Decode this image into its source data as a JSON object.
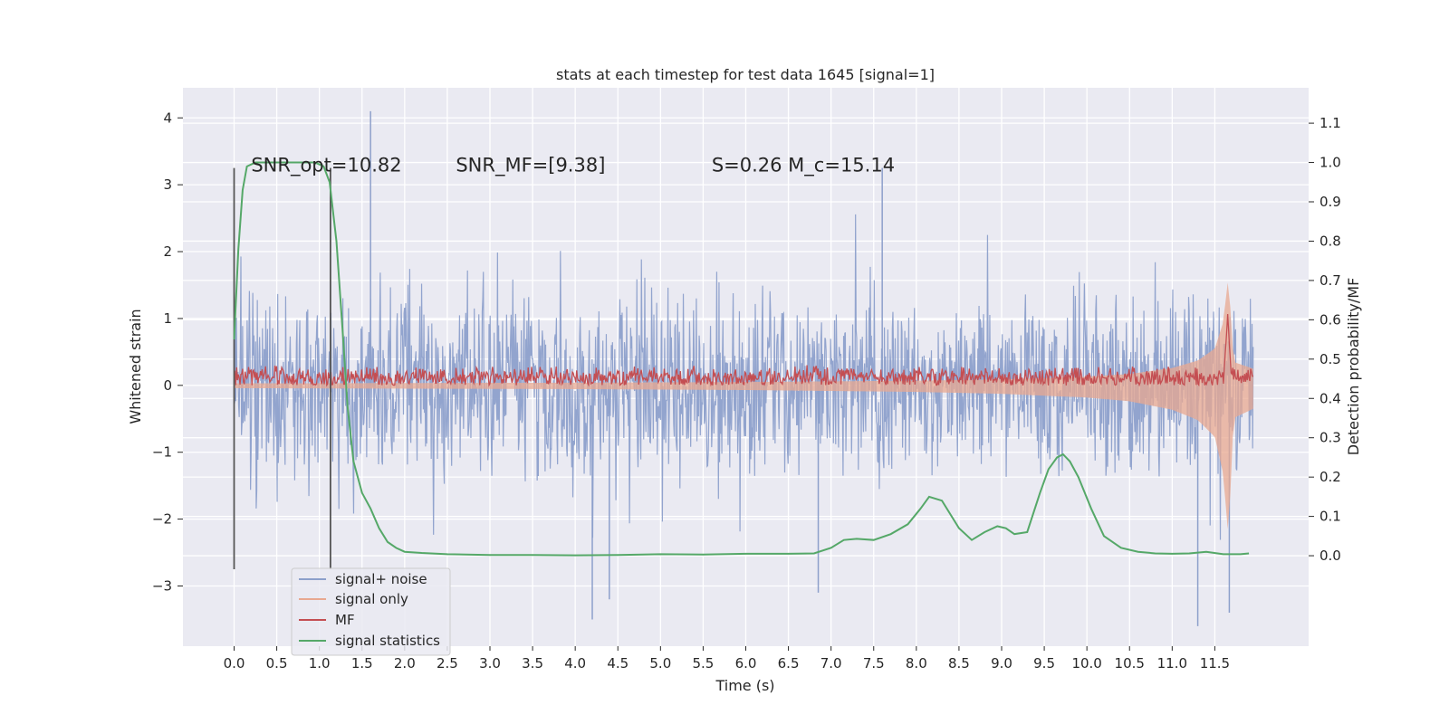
{
  "chart_data": {
    "type": "line",
    "title": "stats at each timestep for test data 1645 [signal=1]",
    "xlabel": "Time (s)",
    "ylabel": "Whitened strain",
    "y2label": "Detection probability/MF",
    "xlim": [
      -0.6,
      12.6
    ],
    "ylim": [
      -3.9,
      4.45
    ],
    "y2lim": [
      -0.23,
      1.19
    ],
    "xticks": [
      0,
      0.5,
      1,
      1.5,
      2,
      2.5,
      3,
      3.5,
      4,
      4.5,
      5,
      5.5,
      6,
      6.5,
      7,
      7.5,
      8,
      8.5,
      9,
      9.5,
      10,
      10.5,
      11,
      11.5
    ],
    "xtick_labels": [
      "0.0",
      "0.5",
      "1.0",
      "1.5",
      "2.0",
      "2.5",
      "3.0",
      "3.5",
      "4.0",
      "4.5",
      "5.0",
      "5.5",
      "6.0",
      "6.5",
      "7.0",
      "7.5",
      "8.0",
      "8.5",
      "9.0",
      "9.5",
      "10.0",
      "10.5",
      "11.0",
      "11.5"
    ],
    "yticks": [
      4,
      3,
      2,
      1,
      0,
      -1,
      -2,
      -3
    ],
    "ytick_labels": [
      "4",
      "3",
      "2",
      "1",
      "0",
      "−1",
      "−2",
      "−3"
    ],
    "y2ticks": [
      1.1,
      1.0,
      0.9,
      0.8,
      0.7,
      0.6,
      0.5,
      0.4,
      0.3,
      0.2,
      0.1,
      0.0
    ],
    "y2tick_labels": [
      "1.1",
      "1.0",
      "0.9",
      "0.8",
      "0.7",
      "0.6",
      "0.5",
      "0.4",
      "0.3",
      "0.2",
      "0.1",
      "0.0"
    ],
    "grid": true,
    "legend_position": "lower-left",
    "annotations": [
      {
        "text": "SNR_opt=10.82",
        "x": 0.2,
        "y": 3.2
      },
      {
        "text": "SNR_MF=[9.38]",
        "x": 2.6,
        "y": 3.2
      },
      {
        "text": "S=0.26   M_c=15.14",
        "x": 5.6,
        "y": 3.2
      }
    ],
    "vertical_markers": [
      {
        "x": 0.0,
        "y_range": [
          -2.75,
          3.25
        ]
      },
      {
        "x": 1.13,
        "y_range": [
          -2.75,
          3.25
        ]
      }
    ],
    "series": [
      {
        "name": "signal+ noise",
        "axis": "left",
        "color": "#8da0cb",
        "description": "whitened noisy strain, dense fluctuation spanning roughly -2.5 to 2.8 between 0 and 11.95 s",
        "x_range": [
          0,
          11.95
        ],
        "typical_range": [
          -2.5,
          2.8
        ],
        "spikes": [
          [
            1.6,
            4.1
          ],
          [
            4.2,
            -3.5
          ],
          [
            11.3,
            -3.6
          ],
          [
            11.67,
            -3.4
          ],
          [
            6.85,
            -3.1
          ],
          [
            7.6,
            3.25
          ],
          [
            4.4,
            -3.2
          ]
        ]
      },
      {
        "name": "signal only",
        "axis": "left",
        "color": "#e8a890",
        "description": "chirp signal with amplitude growing toward merger at ~11.65 s",
        "envelope": {
          "x": [
            0,
            2,
            4,
            6,
            8,
            9,
            10,
            10.5,
            11,
            11.3,
            11.5,
            11.6,
            11.65,
            11.68,
            11.72,
            11.95
          ],
          "amp": [
            0.03,
            0.035,
            0.04,
            0.05,
            0.07,
            0.09,
            0.13,
            0.17,
            0.26,
            0.37,
            0.55,
            0.95,
            1.55,
            1.2,
            0.35,
            0.25
          ]
        }
      },
      {
        "name": "MF",
        "axis": "left",
        "color": "#c44e52",
        "description": "matched-filter output, band about 0 to 0.3 with a peak near 11.65 s",
        "band": [
          0.0,
          0.28
        ],
        "peak": [
          11.65,
          1.0
        ]
      },
      {
        "name": "signal statistics",
        "axis": "right",
        "color": "#55a868",
        "x": [
          0,
          0.05,
          0.1,
          0.15,
          0.25,
          0.4,
          0.6,
          0.8,
          0.95,
          1.05,
          1.12,
          1.2,
          1.27,
          1.33,
          1.4,
          1.5,
          1.6,
          1.7,
          1.8,
          1.9,
          2.0,
          2.2,
          2.5,
          3.0,
          3.5,
          4.0,
          4.5,
          5.0,
          5.5,
          6.0,
          6.5,
          6.8,
          7.0,
          7.15,
          7.3,
          7.5,
          7.7,
          7.9,
          8.05,
          8.15,
          8.3,
          8.5,
          8.65,
          8.8,
          8.95,
          9.05,
          9.15,
          9.3,
          9.45,
          9.55,
          9.65,
          9.72,
          9.8,
          9.9,
          10.05,
          10.2,
          10.4,
          10.6,
          10.8,
          11.0,
          11.2,
          11.4,
          11.6,
          11.8,
          11.9
        ],
        "values": [
          0.55,
          0.78,
          0.93,
          0.99,
          1.0,
          1.0,
          1.0,
          1.0,
          1.0,
          0.99,
          0.95,
          0.8,
          0.58,
          0.38,
          0.24,
          0.16,
          0.12,
          0.07,
          0.035,
          0.02,
          0.01,
          0.007,
          0.004,
          0.002,
          0.002,
          0.001,
          0.002,
          0.004,
          0.003,
          0.005,
          0.005,
          0.006,
          0.02,
          0.04,
          0.043,
          0.04,
          0.055,
          0.08,
          0.12,
          0.15,
          0.14,
          0.07,
          0.04,
          0.06,
          0.075,
          0.07,
          0.055,
          0.06,
          0.16,
          0.22,
          0.25,
          0.258,
          0.24,
          0.2,
          0.12,
          0.05,
          0.02,
          0.01,
          0.006,
          0.005,
          0.006,
          0.01,
          0.004,
          0.004,
          0.006
        ]
      }
    ]
  }
}
